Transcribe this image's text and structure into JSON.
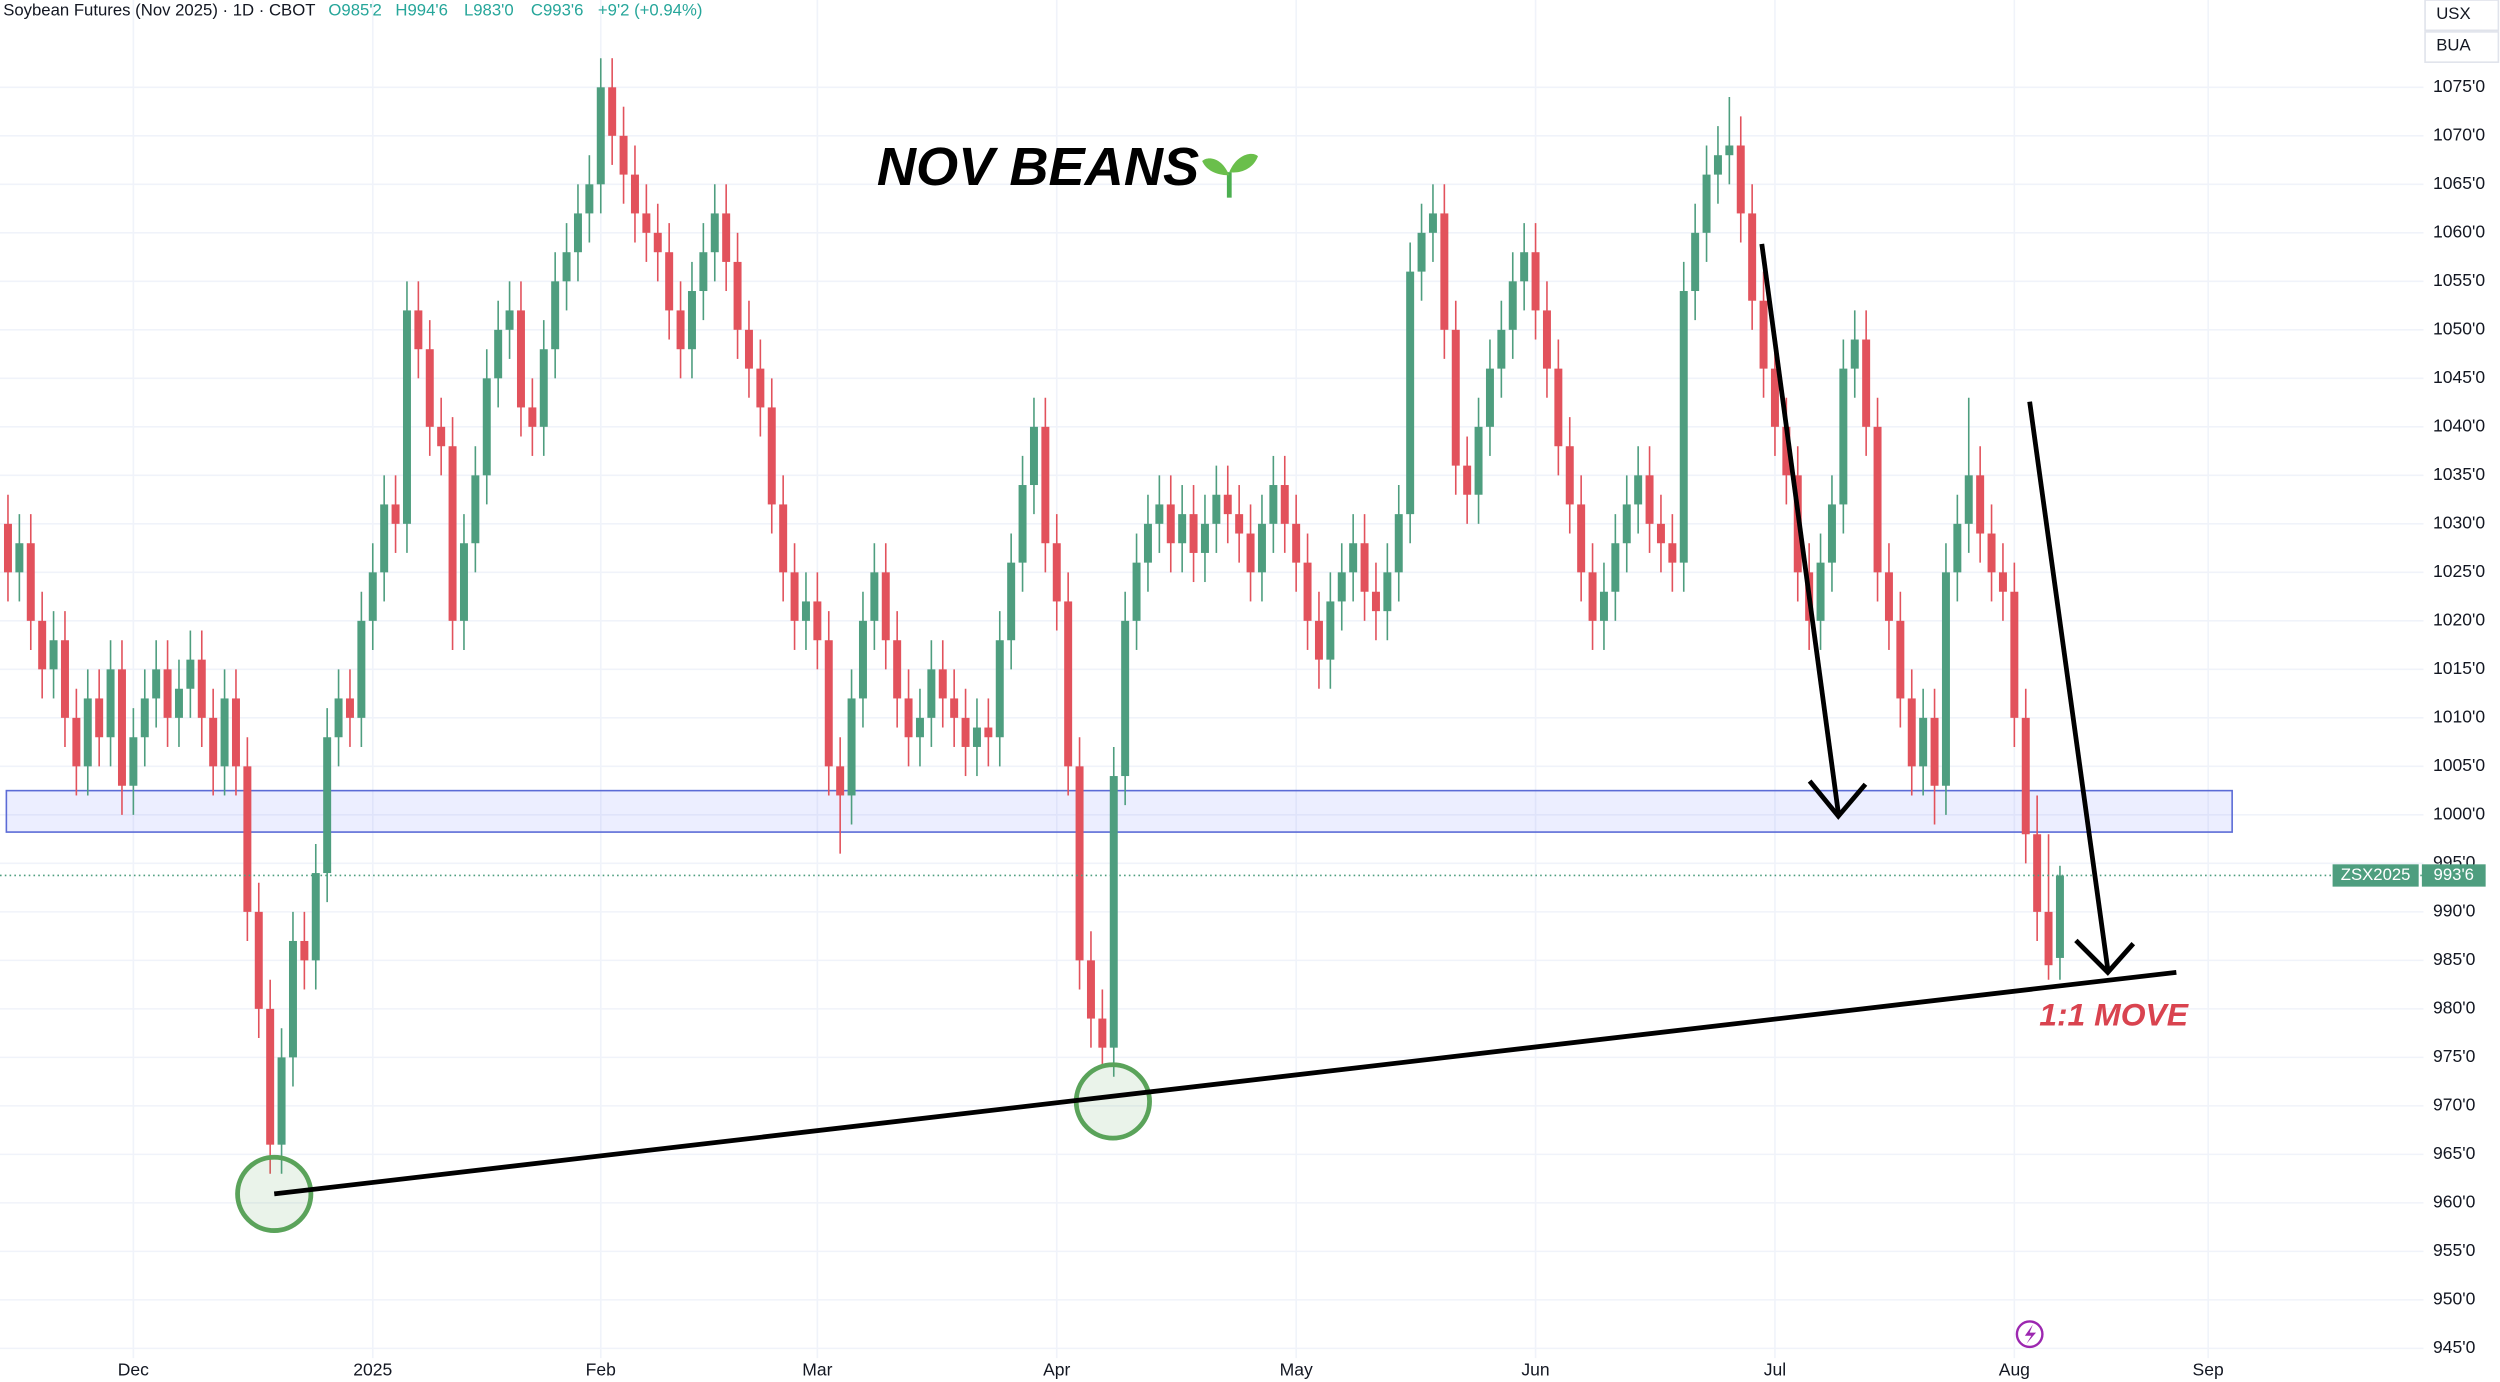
{
  "chart_data": {
    "type": "candlestick",
    "title": "NOV BEANS",
    "annotation": "1:1 MOVE",
    "symbol": "Soybean Futures (Nov 2025) · 1D · CBOT",
    "ohlc_labels": [
      "O985'2",
      "H994'6",
      "L983'0",
      "C993'6"
    ],
    "change_label": "+9'2 (+0.94%)",
    "currency_labels": [
      "USX",
      "BUA"
    ],
    "price_tag_symbol": "ZSX2025",
    "last_price_label": "993'6",
    "up_color": "#4e9e7f",
    "down_color": "#e2525c",
    "grid": true,
    "categories": [
      null,
      null,
      null,
      null,
      null,
      null,
      null,
      null,
      null,
      null,
      null,
      "Dec",
      null,
      null,
      null,
      null,
      null,
      null,
      null,
      null,
      null,
      null,
      null,
      null,
      null,
      null,
      null,
      null,
      null,
      null,
      null,
      null,
      "2025",
      null,
      null,
      null,
      null,
      null,
      null,
      null,
      null,
      null,
      null,
      null,
      null,
      null,
      null,
      null,
      null,
      null,
      null,
      null,
      "Feb",
      null,
      null,
      null,
      null,
      null,
      null,
      null,
      null,
      null,
      null,
      null,
      null,
      null,
      null,
      null,
      null,
      null,
      null,
      "Mar",
      null,
      null,
      null,
      null,
      null,
      null,
      null,
      null,
      null,
      null,
      null,
      null,
      null,
      null,
      null,
      null,
      null,
      null,
      null,
      null,
      "Apr",
      null,
      null,
      null,
      null,
      null,
      null,
      null,
      null,
      null,
      null,
      null,
      null,
      null,
      null,
      null,
      null,
      null,
      null,
      null,
      null,
      "May",
      null,
      null,
      null,
      null,
      null,
      null,
      null,
      null,
      null,
      null,
      null,
      null,
      null,
      null,
      null,
      null,
      null,
      null,
      null,
      null,
      "Jun",
      null,
      null,
      null,
      null,
      null,
      null,
      null,
      null,
      null,
      null,
      null,
      null,
      null,
      null,
      null,
      null,
      null,
      null,
      null,
      null,
      "Jul",
      null,
      null,
      null,
      null,
      null,
      null,
      null,
      null,
      null,
      null,
      null,
      null,
      null,
      null,
      null,
      null,
      null,
      null,
      null,
      null,
      "Aug",
      null,
      null,
      null,
      null,
      null,
      null,
      null,
      null,
      null,
      null,
      null,
      null,
      null,
      null,
      null,
      null,
      "Sep",
      null,
      null,
      null,
      null,
      null,
      null,
      null,
      null,
      null,
      null,
      null,
      null,
      null,
      null,
      null,
      null,
      null,
      null
    ],
    "open": [
      1030,
      1025,
      1028,
      1020,
      1015,
      1018,
      1010,
      1005,
      1012,
      1008,
      1015,
      1003,
      1008,
      1012,
      1015,
      1010,
      1013,
      1016,
      1010,
      1005,
      1012,
      1005,
      990,
      980,
      966,
      975,
      987,
      985,
      994,
      1008,
      1012,
      1010,
      1020,
      1025,
      1032,
      1030,
      1052,
      1048,
      1040,
      1038,
      1020,
      1028,
      1035,
      1045,
      1050,
      1052,
      1042,
      1040,
      1048,
      1055,
      1058,
      1062,
      1065,
      1075,
      1070,
      1066,
      1062,
      1060,
      1058,
      1052,
      1048,
      1054,
      1058,
      1062,
      1057,
      1050,
      1046,
      1042,
      1032,
      1025,
      1020,
      1022,
      1018,
      1005,
      1002,
      1012,
      1020,
      1025,
      1018,
      1012,
      1008,
      1010,
      1015,
      1012,
      1010,
      1007,
      1009,
      1008,
      1018,
      1026,
      1034,
      1040,
      1028,
      1022,
      1005,
      985,
      979,
      976,
      1004,
      1020,
      1026,
      1030,
      1032,
      1028,
      1031,
      1027,
      1030,
      1033,
      1031,
      1029,
      1025,
      1030,
      1034,
      1030,
      1026,
      1020,
      1016,
      1022,
      1025,
      1028,
      1023,
      1021,
      1025,
      1031,
      1056,
      1060,
      1062,
      1050,
      1036,
      1033,
      1040,
      1046,
      1050,
      1055,
      1058,
      1052,
      1046,
      1038,
      1032,
      1025,
      1020,
      1023,
      1028,
      1032,
      1035,
      1030,
      1028,
      1026,
      1054,
      1060,
      1066,
      1068,
      1069,
      1062,
      1053,
      1046,
      1040,
      1035,
      1025,
      1020,
      1026,
      1032,
      1046,
      1049,
      1040,
      1025,
      1020,
      1012,
      1005,
      1010,
      1003,
      1025,
      1030,
      1035,
      1029,
      1025,
      1023,
      1010,
      998,
      990,
      985.25,
      null,
      null,
      null,
      null,
      null,
      null,
      null,
      null,
      null,
      null,
      null,
      null,
      null,
      null,
      null,
      null,
      null,
      null,
      null,
      null,
      null,
      null,
      null,
      null,
      null,
      null,
      null,
      null,
      null,
      null,
      null
    ],
    "high": [
      1033,
      1031,
      1031,
      1023,
      1021,
      1021,
      1013,
      1015,
      1015,
      1018,
      1018,
      1011,
      1015,
      1018,
      1018,
      1016,
      1019,
      1019,
      1013,
      1015,
      1015,
      1008,
      993,
      983,
      978,
      990,
      990,
      997,
      1011,
      1015,
      1015,
      1023,
      1028,
      1035,
      1035,
      1055,
      1055,
      1051,
      1043,
      1041,
      1031,
      1038,
      1048,
      1053,
      1055,
      1055,
      1045,
      1051,
      1058,
      1061,
      1065,
      1068,
      1078,
      1078,
      1073,
      1069,
      1065,
      1063,
      1061,
      1055,
      1057,
      1061,
      1065,
      1065,
      1060,
      1053,
      1049,
      1045,
      1035,
      1028,
      1025,
      1025,
      1021,
      1008,
      1015,
      1023,
      1028,
      1028,
      1021,
      1015,
      1013,
      1018,
      1018,
      1015,
      1013,
      1012,
      1012,
      1021,
      1029,
      1037,
      1043,
      1043,
      1031,
      1025,
      1008,
      988,
      982,
      1007,
      1023,
      1029,
      1033,
      1035,
      1035,
      1034,
      1034,
      1033,
      1036,
      1036,
      1034,
      1032,
      1033,
      1037,
      1037,
      1033,
      1029,
      1023,
      1025,
      1028,
      1031,
      1031,
      1026,
      1028,
      1034,
      1059,
      1063,
      1065,
      1065,
      1053,
      1039,
      1043,
      1049,
      1053,
      1058,
      1061,
      1061,
      1055,
      1049,
      1041,
      1035,
      1028,
      1026,
      1031,
      1035,
      1038,
      1038,
      1033,
      1031,
      1057,
      1063,
      1069,
      1071,
      1074,
      1072,
      1065,
      1056,
      1049,
      1043,
      1038,
      1028,
      1029,
      1035,
      1049,
      1052,
      1052,
      1043,
      1028,
      1023,
      1015,
      1013,
      1013,
      1028,
      1033,
      1043,
      1038,
      1032,
      1028,
      1026,
      1013,
      1002,
      998,
      994.75,
      null,
      null,
      null,
      null,
      null,
      null,
      null,
      null,
      null,
      null,
      null,
      null,
      null,
      null,
      null,
      null,
      null,
      null,
      null,
      null,
      null,
      null,
      null,
      null,
      null,
      null,
      null,
      null,
      null,
      null,
      null
    ],
    "low": [
      1022,
      1022,
      1017,
      1012,
      1012,
      1007,
      1002,
      1002,
      1005,
      1005,
      1000,
      1000,
      1005,
      1009,
      1007,
      1007,
      1010,
      1007,
      1002,
      1002,
      1002,
      987,
      977,
      963,
      963,
      972,
      982,
      982,
      991,
      1005,
      1007,
      1007,
      1017,
      1022,
      1027,
      1027,
      1045,
      1037,
      1035,
      1017,
      1017,
      1025,
      1032,
      1042,
      1047,
      1039,
      1037,
      1037,
      1045,
      1052,
      1055,
      1059,
      1062,
      1067,
      1063,
      1059,
      1057,
      1055,
      1049,
      1045,
      1045,
      1051,
      1055,
      1054,
      1047,
      1043,
      1039,
      1029,
      1022,
      1017,
      1017,
      1015,
      1002,
      996,
      999,
      1009,
      1017,
      1015,
      1009,
      1005,
      1005,
      1007,
      1009,
      1007,
      1004,
      1004,
      1005,
      1005,
      1015,
      1023,
      1031,
      1025,
      1019,
      1002,
      982,
      976,
      974,
      973,
      1001,
      1017,
      1023,
      1027,
      1025,
      1025,
      1024,
      1024,
      1027,
      1028,
      1026,
      1022,
      1022,
      1027,
      1027,
      1023,
      1017,
      1013,
      1013,
      1019,
      1022,
      1020,
      1018,
      1018,
      1022,
      1028,
      1053,
      1057,
      1047,
      1033,
      1030,
      1030,
      1037,
      1043,
      1047,
      1052,
      1049,
      1043,
      1035,
      1029,
      1022,
      1017,
      1017,
      1020,
      1025,
      1029,
      1027,
      1025,
      1023,
      1023,
      1051,
      1057,
      1063,
      1065,
      1059,
      1050,
      1043,
      1037,
      1032,
      1022,
      1017,
      1017,
      1023,
      1029,
      1043,
      1037,
      1022,
      1017,
      1009,
      1002,
      1002,
      999,
      1000,
      1022,
      1027,
      1026,
      1022,
      1020,
      1007,
      995,
      987,
      983,
      983,
      null,
      null,
      null,
      null,
      null,
      null,
      null,
      null,
      null,
      null,
      null,
      null,
      null,
      null,
      null,
      null,
      null,
      null,
      null,
      null,
      null,
      null,
      null,
      null,
      null,
      null,
      null,
      null,
      null,
      null,
      null
    ],
    "close": [
      1025,
      1028,
      1020,
      1015,
      1018,
      1010,
      1005,
      1012,
      1008,
      1015,
      1003,
      1008,
      1012,
      1015,
      1010,
      1013,
      1016,
      1010,
      1005,
      1012,
      1005,
      990,
      980,
      966,
      975,
      987,
      985,
      994,
      1008,
      1012,
      1010,
      1020,
      1025,
      1032,
      1030,
      1052,
      1048,
      1040,
      1038,
      1020,
      1028,
      1035,
      1045,
      1050,
      1052,
      1042,
      1040,
      1048,
      1055,
      1058,
      1062,
      1065,
      1075,
      1070,
      1066,
      1062,
      1060,
      1058,
      1052,
      1048,
      1054,
      1058,
      1062,
      1057,
      1050,
      1046,
      1042,
      1032,
      1025,
      1020,
      1022,
      1018,
      1005,
      1002,
      1012,
      1020,
      1025,
      1018,
      1012,
      1008,
      1010,
      1015,
      1012,
      1010,
      1007,
      1009,
      1008,
      1018,
      1026,
      1034,
      1040,
      1028,
      1022,
      1005,
      985,
      979,
      976,
      1004,
      1020,
      1026,
      1030,
      1032,
      1028,
      1031,
      1027,
      1030,
      1033,
      1031,
      1029,
      1025,
      1030,
      1034,
      1030,
      1026,
      1020,
      1016,
      1022,
      1025,
      1028,
      1023,
      1021,
      1025,
      1031,
      1056,
      1060,
      1062,
      1050,
      1036,
      1033,
      1040,
      1046,
      1050,
      1055,
      1058,
      1052,
      1046,
      1038,
      1032,
      1025,
      1020,
      1023,
      1028,
      1032,
      1035,
      1030,
      1028,
      1026,
      1054,
      1060,
      1066,
      1068,
      1069,
      1062,
      1053,
      1046,
      1040,
      1035,
      1025,
      1020,
      1026,
      1032,
      1046,
      1049,
      1040,
      1025,
      1020,
      1012,
      1005,
      1010,
      1003,
      1025,
      1030,
      1035,
      1029,
      1025,
      1023,
      1010,
      998,
      990,
      984.5,
      993.75,
      null,
      null,
      null,
      null,
      null,
      null,
      null,
      null,
      null,
      null,
      null,
      null,
      null,
      null,
      null,
      null,
      null,
      null,
      null,
      null,
      null,
      null,
      null,
      null,
      null,
      null,
      null,
      null,
      null,
      null,
      null
    ],
    "ylim": [
      944,
      1084
    ],
    "yticks": [
      {
        "value": 945,
        "label": "945'0"
      },
      {
        "value": 950,
        "label": "950'0"
      },
      {
        "value": 955,
        "label": "955'0"
      },
      {
        "value": 960,
        "label": "960'0"
      },
      {
        "value": 965,
        "label": "965'0"
      },
      {
        "value": 970,
        "label": "970'0"
      },
      {
        "value": 975,
        "label": "975'0"
      },
      {
        "value": 980,
        "label": "980'0"
      },
      {
        "value": 985,
        "label": "985'0"
      },
      {
        "value": 990,
        "label": "990'0"
      },
      {
        "value": 995,
        "label": "995'0"
      },
      {
        "value": 1000,
        "label": "1000'0"
      },
      {
        "value": 1005,
        "label": "1005'0"
      },
      {
        "value": 1010,
        "label": "1010'0"
      },
      {
        "value": 1015,
        "label": "1015'0"
      },
      {
        "value": 1020,
        "label": "1020'0"
      },
      {
        "value": 1025,
        "label": "1025'0"
      },
      {
        "value": 1030,
        "label": "1030'0"
      },
      {
        "value": 1035,
        "label": "1035'0"
      },
      {
        "value": 1040,
        "label": "1040'0"
      },
      {
        "value": 1045,
        "label": "1045'0"
      },
      {
        "value": 1050,
        "label": "1050'0"
      },
      {
        "value": 1055,
        "label": "1055'0"
      },
      {
        "value": 1060,
        "label": "1060'0"
      },
      {
        "value": 1065,
        "label": "1065'0"
      },
      {
        "value": 1070,
        "label": "1070'0"
      },
      {
        "value": 1075,
        "label": "1075'0"
      }
    ]
  }
}
